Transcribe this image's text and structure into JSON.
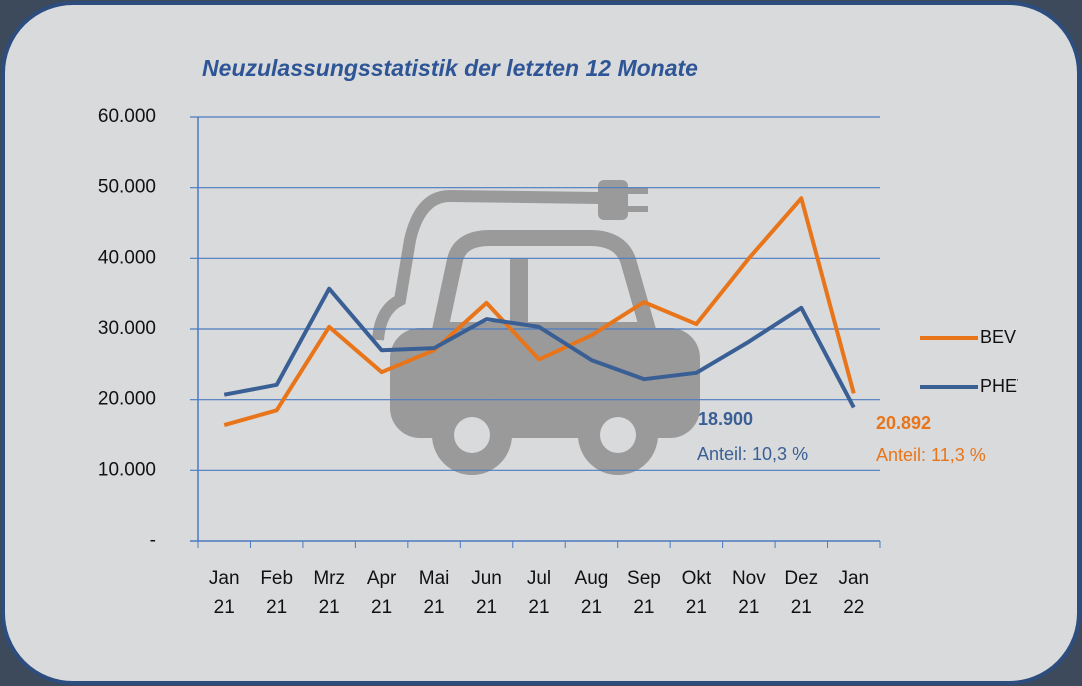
{
  "chart_data": {
    "type": "line",
    "title": "Neuzulassungsstatistik der letzten 12 Monate",
    "categories": [
      "Jan 21",
      "Feb 21",
      "Mrz 21",
      "Apr 21",
      "Mai 21",
      "Jun 21",
      "Jul 21",
      "Aug 21",
      "Sep 21",
      "Okt 21",
      "Nov 21",
      "Dez 21",
      "Jan 22"
    ],
    "series": [
      {
        "name": "BEV",
        "color": "#e8751a",
        "values": [
          16400,
          18500,
          30300,
          23900,
          27000,
          33700,
          25700,
          29100,
          33800,
          30700,
          40000,
          48500,
          20892
        ]
      },
      {
        "name": "PHEV",
        "color": "#3a5f94",
        "values": [
          20700,
          22100,
          35700,
          27000,
          27300,
          31400,
          30300,
          25600,
          22900,
          23800,
          28200,
          33000,
          18900
        ]
      }
    ],
    "ylim": [
      0,
      60000
    ],
    "yticks": [
      {
        "value": 0,
        "label": "-"
      },
      {
        "value": 10000,
        "label": "10.000"
      },
      {
        "value": 20000,
        "label": "20.000"
      },
      {
        "value": 30000,
        "label": "30.000"
      },
      {
        "value": 40000,
        "label": "40.000"
      },
      {
        "value": 50000,
        "label": "50.000"
      },
      {
        "value": 60000,
        "label": "60.000"
      }
    ],
    "grid": true,
    "legend": "right",
    "annotations": [
      {
        "text": "18.900",
        "series": 1
      },
      {
        "text": "Anteil: 10,3 %",
        "series": 1
      },
      {
        "text": "20.892",
        "series": 0
      },
      {
        "text": "Anteil: 11,3 %",
        "series": 0
      }
    ]
  }
}
